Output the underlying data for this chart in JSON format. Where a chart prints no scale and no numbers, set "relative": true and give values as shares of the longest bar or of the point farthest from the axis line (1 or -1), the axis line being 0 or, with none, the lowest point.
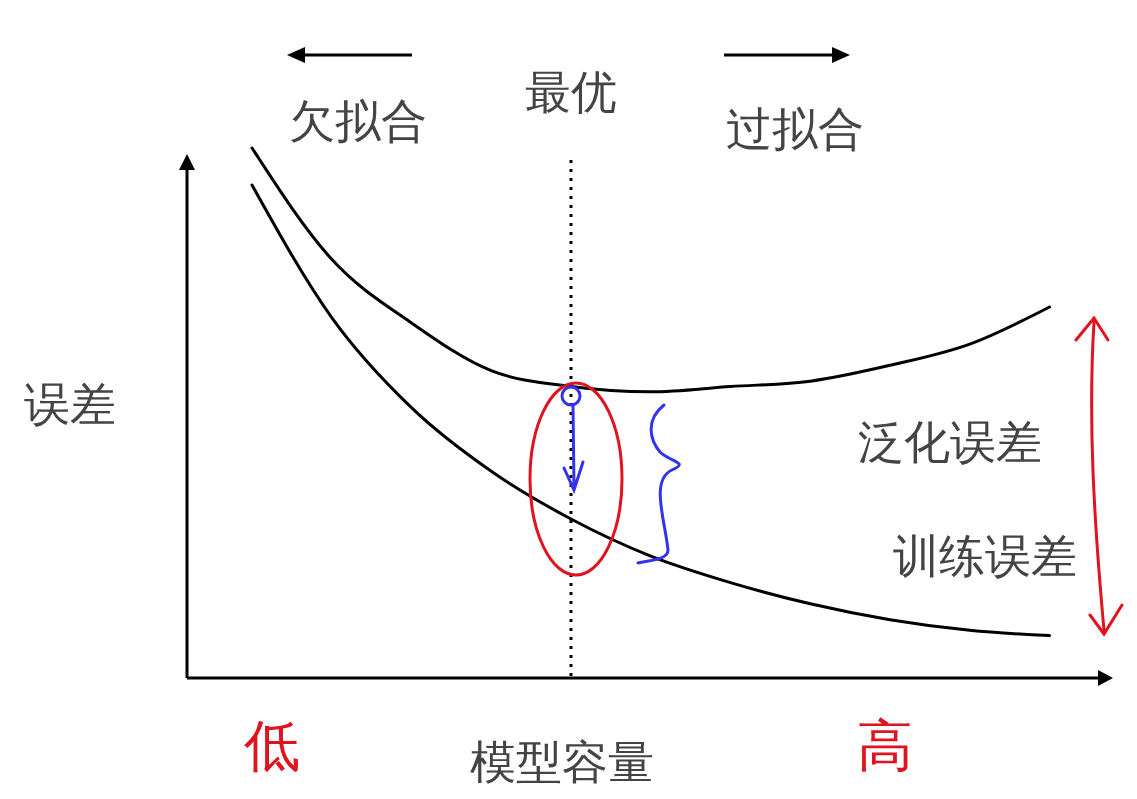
{
  "chart_data": {
    "type": "line",
    "relative": true,
    "xlabel": "模型容量",
    "ylabel": "误差",
    "categories": [
      null,
      null,
      null,
      null,
      null,
      null,
      null,
      null,
      null,
      null,
      null
    ],
    "series": [
      {
        "name": "泛化误差",
        "color": "#000000",
        "values": [
          1.0,
          0.79,
          0.67,
          0.58,
          0.55,
          0.54,
          0.55,
          0.56,
          0.59,
          0.63,
          0.7
        ]
      },
      {
        "name": "训练误差",
        "color": "#000000",
        "values": [
          0.93,
          0.68,
          0.51,
          0.39,
          0.3,
          0.23,
          0.18,
          0.14,
          0.11,
          0.09,
          0.08
        ]
      }
    ],
    "annotations": [
      "欠拟合",
      "过拟合",
      "低",
      "高",
      "最优"
    ],
    "grid": false,
    "marker": "none",
    "line_style": "solid"
  }
}
